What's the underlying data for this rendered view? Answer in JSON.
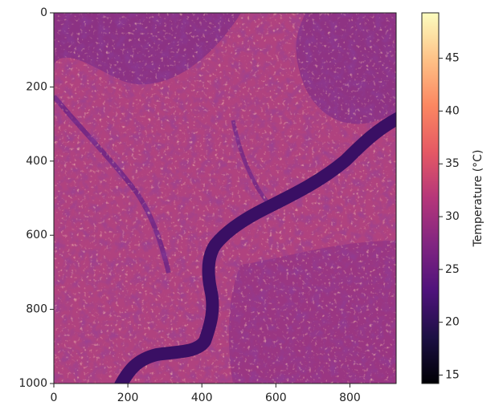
{
  "chart_data": {
    "type": "heatmap",
    "xlim": [
      0,
      925
    ],
    "ylim": [
      1000,
      0
    ],
    "xticks": [
      0,
      200,
      400,
      600,
      800
    ],
    "yticks": [
      0,
      200,
      400,
      600,
      800,
      1000
    ],
    "colorbar": {
      "label": "Temperature (°C)",
      "lim": [
        14.2,
        49.3
      ],
      "ticks": [
        15,
        20,
        25,
        30,
        35,
        40,
        45
      ],
      "colormap": "magma"
    }
  }
}
